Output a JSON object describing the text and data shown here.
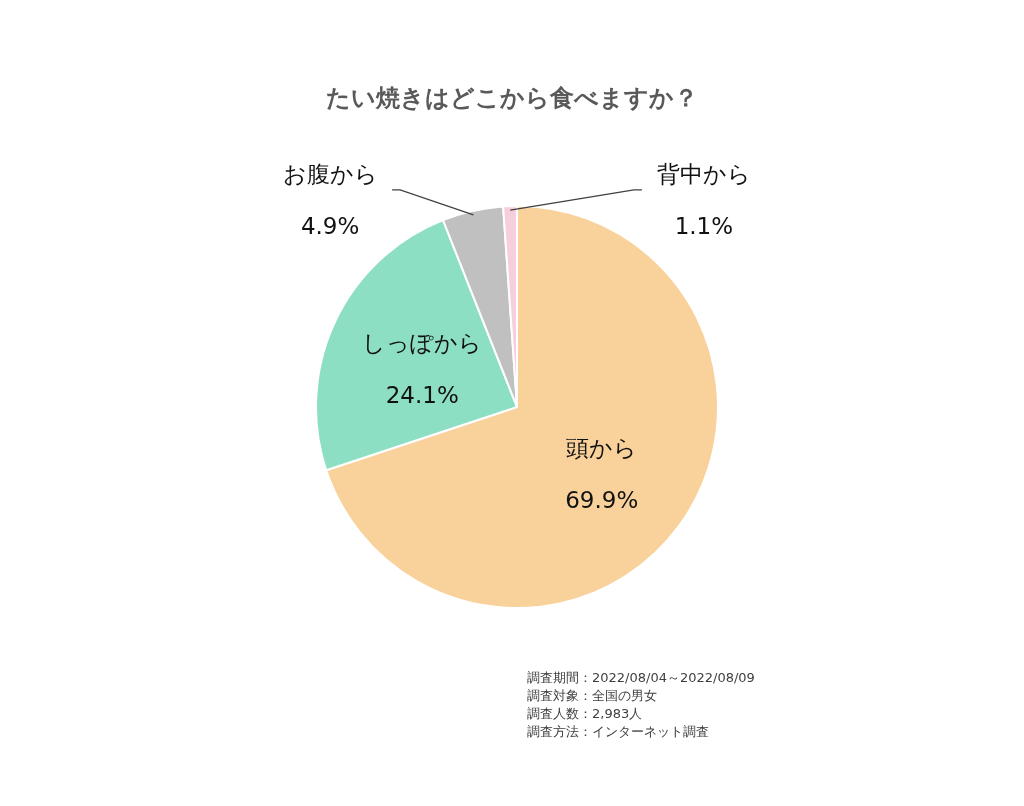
{
  "chart_data": {
    "type": "pie",
    "title": "たい焼きはどこから食べますか？",
    "categories": [
      "頭から",
      "しっぽから",
      "お腹から",
      "背中から"
    ],
    "values": [
      69.9,
      24.1,
      4.9,
      1.1
    ],
    "colors": [
      "#f9d29b",
      "#8ddfc4",
      "#c0c0c0",
      "#f7cfdc"
    ],
    "value_labels": [
      "69.9%",
      "24.1%",
      "4.9%",
      "1.1%"
    ],
    "annotations": [
      "調査期間：2022/08/04～2022/08/09",
      "調査対象：全国の男女",
      "調査人数：2,983人",
      "調査方法：インターネット調査"
    ]
  }
}
